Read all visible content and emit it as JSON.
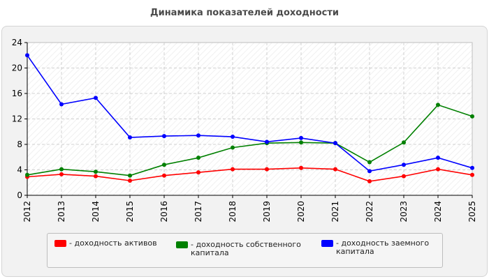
{
  "title": "Динамика показателей доходности",
  "chart_data": {
    "type": "line",
    "title": "Динамика показателей доходности",
    "xlabel": "",
    "ylabel": "",
    "categories": [
      "2012",
      "2013",
      "2014",
      "2015",
      "2016",
      "2017",
      "2018",
      "2019",
      "2020",
      "2021",
      "2022",
      "2023",
      "2024",
      "2025"
    ],
    "ylim": [
      0,
      24
    ],
    "yticks": [
      "0",
      "4",
      "8",
      "12",
      "16",
      "20",
      "24"
    ],
    "grid": true,
    "legend_position": "bottom",
    "series": [
      {
        "name": "- доходность активов",
        "color": "#ff0000",
        "values": [
          2.9,
          3.3,
          3.0,
          2.3,
          3.1,
          3.6,
          4.1,
          4.1,
          4.3,
          4.1,
          2.2,
          3.0,
          4.1,
          3.2
        ]
      },
      {
        "name": "- доходность собственного капитала",
        "color": "#008000",
        "values": [
          3.2,
          4.1,
          3.7,
          3.1,
          4.8,
          5.9,
          7.5,
          8.2,
          8.3,
          8.2,
          5.2,
          8.3,
          14.2,
          12.4
        ]
      },
      {
        "name": "- доходность заемного капитала",
        "color": "#0000ff",
        "values": [
          22.0,
          14.3,
          15.3,
          9.1,
          9.3,
          9.4,
          9.2,
          8.4,
          9.0,
          8.2,
          3.8,
          4.8,
          5.9,
          4.3
        ]
      }
    ]
  },
  "legend": {
    "items": [
      {
        "label_lines": [
          "- доходность активов"
        ],
        "color": "#ff0000"
      },
      {
        "label_lines": [
          "- доходность собственного",
          "капитала"
        ],
        "color": "#008000"
      },
      {
        "label_lines": [
          "- доходность заемного",
          "капитала"
        ],
        "color": "#0000ff"
      }
    ]
  }
}
